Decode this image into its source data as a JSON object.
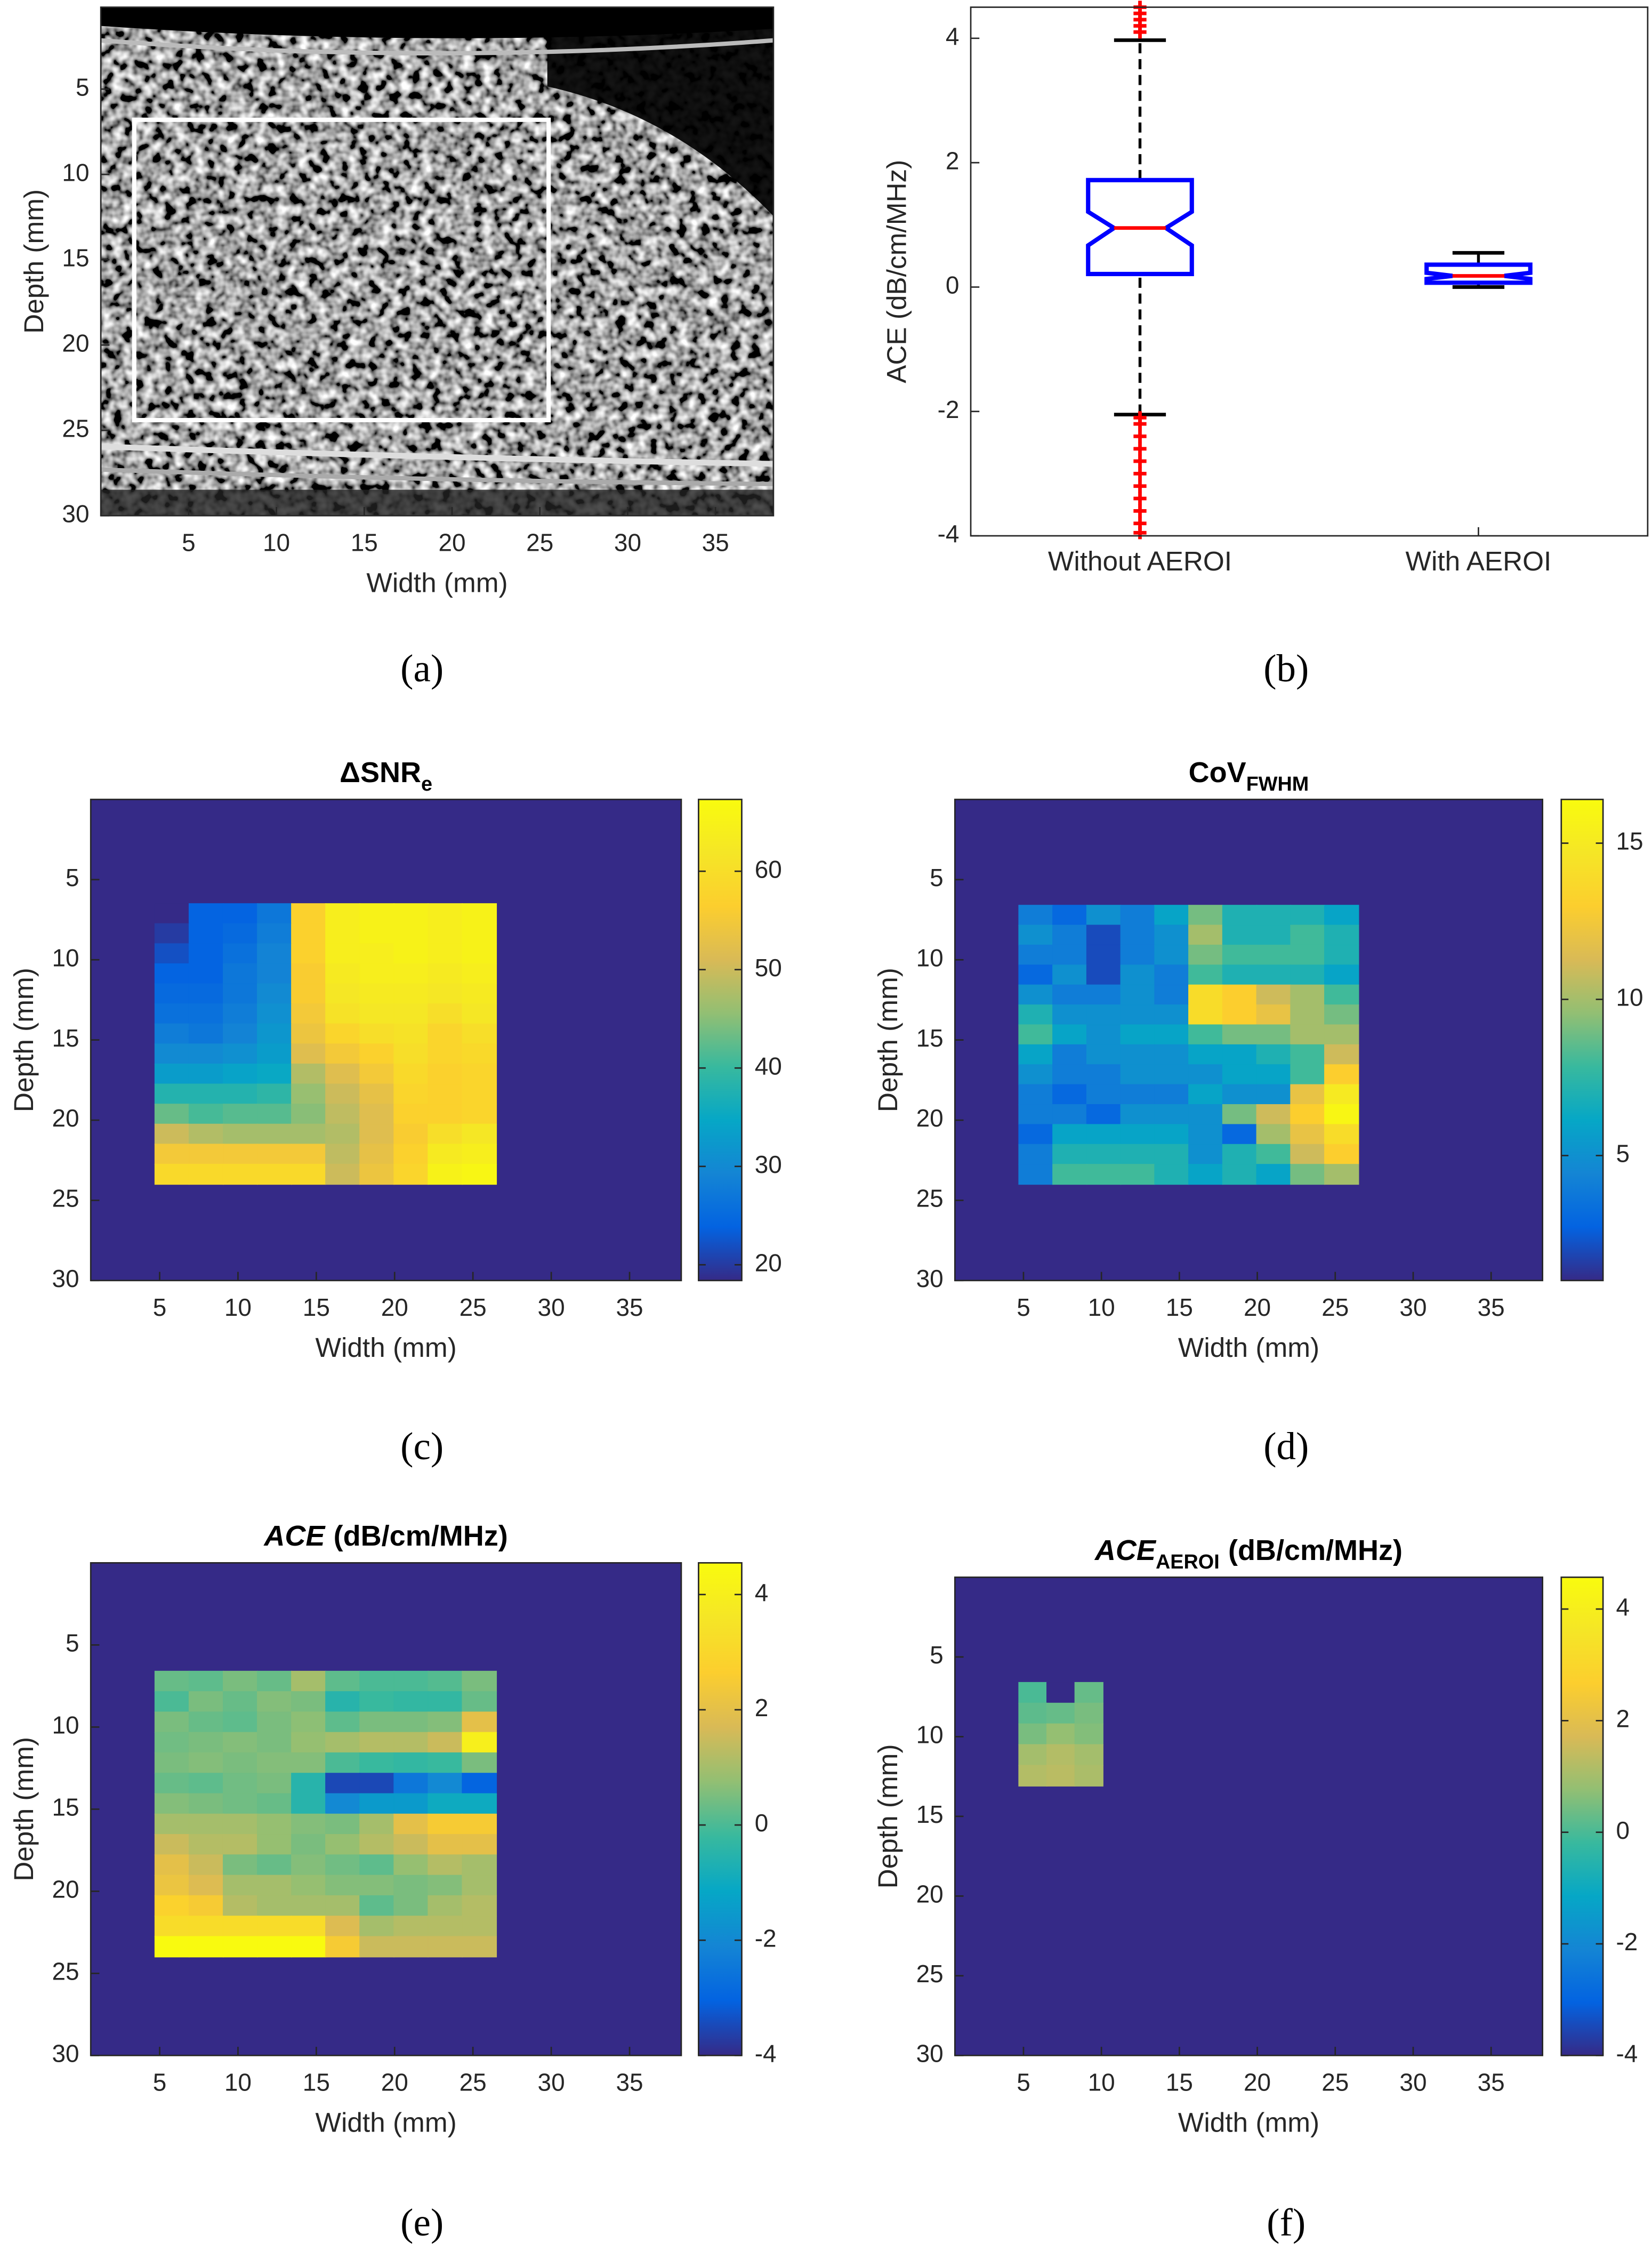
{
  "chart_data": [
    {
      "type": "image",
      "caption": "(a)",
      "xlabel": "Width (mm)",
      "ylabel": "Depth (mm)",
      "xlim": [
        0,
        38.3
      ],
      "ylim": [
        30,
        0.2
      ],
      "xticks": [
        5,
        10,
        15,
        20,
        25,
        30,
        35
      ],
      "yticks": [
        5,
        10,
        15,
        20,
        25,
        30
      ],
      "roi": {
        "x": [
          1.9,
          25.5
        ],
        "y": [
          6.8,
          24.4
        ]
      },
      "roi_color": "#ffffff"
    },
    {
      "type": "box",
      "caption": "(b)",
      "ylabel": "ACE (dB/cm/MHz)",
      "categories": [
        "Without AEROI",
        "With AEROI"
      ],
      "ylim": [
        -4,
        4.5
      ],
      "yticks": [
        -4,
        -2,
        0,
        2,
        4
      ],
      "box_color": "#0000ff",
      "median_color": "#ff0000",
      "whisker_color": "#000000",
      "outlier_color": "#ff0000",
      "boxes": [
        {
          "whisker_low": -2.05,
          "q1": 0.21,
          "notch_low": 0.67,
          "median": 0.95,
          "notch_high": 1.21,
          "q3": 1.72,
          "whisker_high": 3.97,
          "outliers": [
            4.1,
            4.2,
            4.3,
            4.4,
            4.5,
            -2.1,
            -2.2,
            -2.4,
            -2.6,
            -2.8,
            -3.0,
            -3.2,
            -3.4,
            -3.6,
            -3.8,
            -3.95
          ]
        },
        {
          "whisker_low": 0.0,
          "q1": 0.07,
          "notch_low": 0.13,
          "median": 0.18,
          "notch_high": 0.23,
          "q3": 0.36,
          "whisker_high": 0.55
        }
      ]
    },
    {
      "type": "heatmap",
      "caption": "(c)",
      "title": "ΔSNR",
      "title_sub": "e",
      "xlabel": "Width (mm)",
      "ylabel": "Depth (mm)",
      "xlim": [
        0.6,
        38.3
      ],
      "ylim": [
        30,
        0
      ],
      "xticks": [
        5,
        10,
        15,
        20,
        25,
        30,
        35
      ],
      "yticks": [
        5,
        10,
        15,
        20,
        25,
        30
      ],
      "colormap": "parula",
      "clim": [
        18.4,
        67.3
      ],
      "cticks": [
        20,
        30,
        40,
        50,
        60
      ],
      "background": 18.4,
      "roi_x": [
        4.7,
        26.5
      ],
      "roi_y": [
        6.5,
        24
      ],
      "z": [
        [
          18.4,
          24,
          24,
          27,
          57,
          64,
          65,
          65,
          64,
          65
        ],
        [
          20,
          24,
          25,
          28,
          57,
          64,
          65,
          65,
          64,
          65
        ],
        [
          22,
          24,
          26,
          29,
          57,
          64,
          64,
          65,
          64,
          65
        ],
        [
          24,
          24,
          27,
          29,
          56,
          63,
          64,
          64,
          63,
          64
        ],
        [
          25,
          25,
          27,
          30,
          56,
          62,
          63,
          63,
          62,
          63
        ],
        [
          26,
          26,
          28,
          31,
          55,
          61,
          62,
          62,
          60,
          62
        ],
        [
          28,
          27,
          29,
          32,
          54,
          58,
          60,
          61,
          58,
          60
        ],
        [
          30,
          30,
          31,
          33,
          52,
          55,
          57,
          60,
          58,
          59
        ],
        [
          33,
          33,
          34,
          35,
          48,
          52,
          55,
          59,
          57,
          58
        ],
        [
          38,
          38,
          38,
          39,
          46,
          50,
          53,
          58,
          57,
          58
        ],
        [
          43,
          41,
          42,
          42,
          45,
          49,
          52,
          57,
          57,
          58
        ],
        [
          50,
          48,
          47,
          47,
          47,
          48,
          52,
          56,
          60,
          62
        ],
        [
          55,
          55,
          55,
          55,
          55,
          49,
          53,
          57,
          63,
          64
        ],
        [
          59,
          59,
          59,
          59,
          59,
          50,
          54,
          58,
          65,
          66
        ]
      ]
    },
    {
      "type": "heatmap",
      "caption": "(d)",
      "title": "CoV",
      "title_sub": "FWHM",
      "xlabel": "Width (mm)",
      "ylabel": "Depth (mm)",
      "xlim": [
        0.6,
        38.3
      ],
      "ylim": [
        30,
        0
      ],
      "xticks": [
        5,
        10,
        15,
        20,
        25,
        30,
        35
      ],
      "yticks": [
        5,
        10,
        15,
        20,
        25,
        30
      ],
      "colormap": "parula",
      "clim": [
        1,
        16.4
      ],
      "cticks": [
        5,
        10,
        15
      ],
      "background": 1,
      "roi_x": [
        4.7,
        26.5
      ],
      "roi_y": [
        6.6,
        24
      ],
      "z": [
        [
          4,
          3,
          5,
          4,
          6,
          9,
          7,
          7,
          7,
          6
        ],
        [
          5,
          4,
          2,
          4,
          5,
          10,
          7,
          7,
          8,
          7
        ],
        [
          4,
          4,
          2,
          4,
          5,
          9,
          8,
          8,
          8,
          7
        ],
        [
          3,
          5,
          2,
          5,
          4,
          8,
          7,
          7,
          7,
          6
        ],
        [
          5,
          4,
          4,
          5,
          4,
          14,
          13,
          11,
          10,
          8
        ],
        [
          7,
          5,
          5,
          5,
          5,
          14,
          13,
          12,
          10,
          9
        ],
        [
          8,
          6,
          5,
          6,
          6,
          8,
          9,
          9,
          10,
          10
        ],
        [
          6,
          4,
          5,
          5,
          5,
          6,
          6,
          7,
          8,
          11
        ],
        [
          5,
          4,
          4,
          5,
          5,
          5,
          6,
          6,
          8,
          13
        ],
        [
          4,
          3,
          4,
          4,
          4,
          6,
          5,
          5,
          12,
          15
        ],
        [
          4,
          4,
          3,
          5,
          5,
          5,
          9,
          11,
          13,
          16
        ],
        [
          3,
          6,
          6,
          6,
          6,
          5,
          3,
          10,
          12,
          14
        ],
        [
          4,
          7,
          7,
          7,
          7,
          5,
          7,
          8,
          11,
          13
        ],
        [
          4,
          8,
          8,
          8,
          7,
          6,
          7,
          6,
          9,
          10
        ]
      ]
    },
    {
      "type": "heatmap",
      "caption": "(e)",
      "title": "ACE",
      "title_suffix": "(dB/cm/MHz)",
      "xlabel": "Width (mm)",
      "ylabel": "Depth (mm)",
      "xlim": [
        0.6,
        38.3
      ],
      "ylim": [
        30,
        0
      ],
      "xticks": [
        5,
        10,
        15,
        20,
        25,
        30,
        35
      ],
      "yticks": [
        5,
        10,
        15,
        20,
        25,
        30
      ],
      "colormap": "parula",
      "clim": [
        -4,
        4.55
      ],
      "cticks": [
        -4,
        -2,
        0,
        2,
        4
      ],
      "background": -4,
      "roi_x": [
        4.7,
        26.5
      ],
      "roi_y": [
        6.6,
        24
      ],
      "z": [
        [
          0.3,
          0.2,
          0.5,
          0.3,
          1,
          0.2,
          0,
          0,
          0.1,
          0.5
        ],
        [
          0,
          0.5,
          0.3,
          0.6,
          0.5,
          -0.5,
          -0.2,
          -0.3,
          -0.3,
          0.3
        ],
        [
          0.5,
          0.3,
          0.2,
          0.5,
          0.7,
          0.2,
          0.5,
          0.5,
          0.6,
          2
        ],
        [
          0.4,
          0.5,
          0.6,
          0.5,
          0.8,
          1,
          1.2,
          1.2,
          1.5,
          4
        ],
        [
          0.5,
          0.6,
          0.5,
          0.6,
          0.6,
          0,
          -0.2,
          -0.3,
          -0.2,
          0.5
        ],
        [
          0.3,
          0.2,
          0.4,
          0.5,
          -0.5,
          -3.5,
          -3.5,
          -2.5,
          -2,
          -3
        ],
        [
          0.6,
          0.5,
          0.4,
          0.3,
          -0.5,
          -2,
          -1.5,
          -1.5,
          -1,
          -1
        ],
        [
          1,
          1,
          1,
          0.8,
          0.6,
          0.5,
          1,
          2,
          2.5,
          2.5
        ],
        [
          1.5,
          1.2,
          1.2,
          0.8,
          0.5,
          0.8,
          1.2,
          1.5,
          2,
          2
        ],
        [
          2,
          1.5,
          0.5,
          0.3,
          0.6,
          0.4,
          0.2,
          0.8,
          1.2,
          1
        ],
        [
          2.2,
          1.8,
          1,
          1,
          0.8,
          0.6,
          0.6,
          0.5,
          0.6,
          1
        ],
        [
          2.8,
          2.5,
          1.2,
          1,
          1,
          1,
          0.2,
          0.5,
          1,
          1.2
        ],
        [
          3.2,
          3.2,
          3.2,
          3.2,
          3.2,
          1.8,
          1,
          1.2,
          1.2,
          1.2
        ],
        [
          4.5,
          4.5,
          4.5,
          4.5,
          4.5,
          2.5,
          1.5,
          1.5,
          1.5,
          1.5
        ]
      ]
    },
    {
      "type": "heatmap",
      "caption": "(f)",
      "title": "ACE",
      "title_sub": "AEROI",
      "title_suffix": "(dB/cm/MHz)",
      "xlabel": "Width (mm)",
      "ylabel": "Depth (mm)",
      "xlim": [
        0.6,
        38.3
      ],
      "ylim": [
        30,
        0
      ],
      "xticks": [
        5,
        10,
        15,
        20,
        25,
        30,
        35
      ],
      "yticks": [
        5,
        10,
        15,
        20,
        25,
        30
      ],
      "colormap": "parula",
      "clim": [
        -4,
        4.57
      ],
      "cticks": [
        -4,
        -2,
        0,
        2,
        4
      ],
      "background": -4,
      "roi_x": [
        4.7,
        10.1
      ],
      "roi_y": [
        6.6,
        13.1
      ],
      "z": [
        [
          0,
          -4,
          0.3
        ],
        [
          0.2,
          0.3,
          0.5
        ],
        [
          0.5,
          0.8,
          0.6
        ],
        [
          1,
          1.2,
          1
        ],
        [
          1.2,
          1.3,
          1.1
        ]
      ]
    }
  ]
}
